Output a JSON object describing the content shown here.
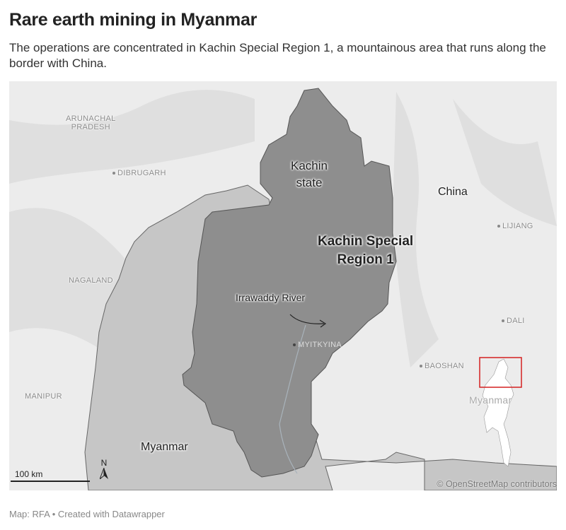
{
  "title": "Rare earth mining in Myanmar",
  "subtitle": "The operations are concentrated in Kachin Special Region 1, a mountainous area that runs along the border with China.",
  "map": {
    "labels": {
      "arunachal": "ARUNACHAL\nPRADESH",
      "dibrugarh": "DIBRUGARH",
      "nagaland": "NAGALAND",
      "manipur": "MANIPUR",
      "myitkyina": "MYITKYINA",
      "lijiang": "LIJIANG",
      "dali": "DALI",
      "baoshan": "BAOSHAN",
      "china": "China",
      "myanmar": "Myanmar",
      "kachin_state": "Kachin\nstate",
      "special_region": "Kachin Special\nRegion 1",
      "river": "Irrawaddy River"
    },
    "inset_label": "Myanmar",
    "scale_bar": "100 km",
    "north": "N",
    "attribution": "© OpenStreetMap contributors",
    "colors": {
      "highlight_region": "#8e8e8e",
      "state": "#b4b4b4",
      "inset_box": "#d42020"
    }
  },
  "footer": "Map: RFA • Created with Datawrapper"
}
